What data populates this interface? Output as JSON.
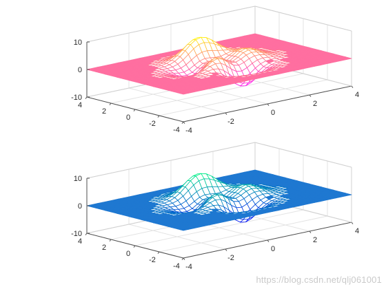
{
  "figure": {
    "watermark": "https://blog.csdn.net/qlj061001"
  },
  "chart_data": [
    {
      "type": "surface-mesh",
      "function": "peaks",
      "colormap": "spring",
      "colormap_stops": [
        "#ff00ff",
        "#ffff00"
      ],
      "mesh_edge_color": "#ff66b3",
      "flat_plane_color": "#ff6fa0",
      "x_ticks": [
        "-4",
        "-2",
        "0",
        "2",
        "4"
      ],
      "y_ticks": [
        "-4",
        "-2",
        "0",
        "2",
        "4"
      ],
      "z_ticks": [
        "-10",
        "0",
        "10"
      ],
      "xlim": [
        -4,
        4
      ],
      "ylim": [
        -4,
        4
      ],
      "zlim": [
        -10,
        10
      ],
      "grid": true,
      "title": "",
      "xlabel": "",
      "ylabel": "",
      "zlabel": ""
    },
    {
      "type": "surface-mesh",
      "function": "peaks",
      "colormap": "winter",
      "colormap_stops": [
        "#0000ff",
        "#00ff80"
      ],
      "mesh_edge_color": "#0a6fcf",
      "flat_plane_color": "#1f78d1",
      "x_ticks": [
        "-4",
        "-2",
        "0",
        "2",
        "4"
      ],
      "y_ticks": [
        "-4",
        "-2",
        "0",
        "2",
        "4"
      ],
      "z_ticks": [
        "-10",
        "0",
        "10"
      ],
      "xlim": [
        -4,
        4
      ],
      "ylim": [
        -4,
        4
      ],
      "zlim": [
        -10,
        10
      ],
      "grid": true,
      "title": "",
      "xlabel": "",
      "ylabel": "",
      "zlabel": ""
    }
  ]
}
